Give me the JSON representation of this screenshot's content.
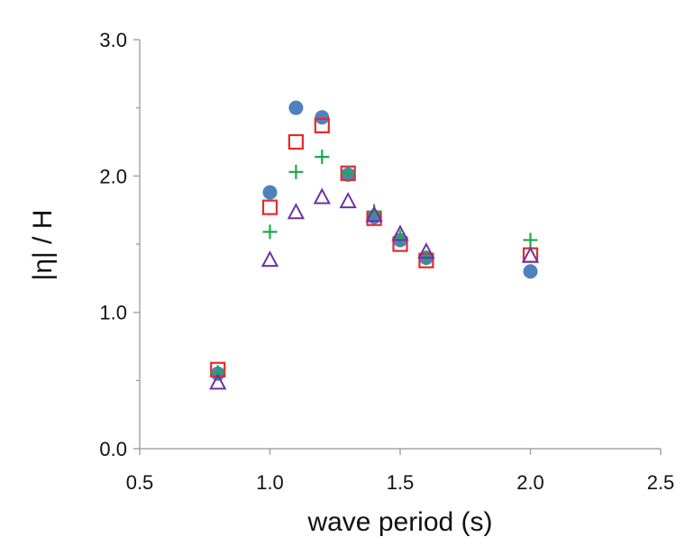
{
  "chart_data": {
    "type": "scatter",
    "title": "",
    "xlabel": "wave period (s)",
    "ylabel": "|η| / H",
    "xlim": [
      0.5,
      2.5
    ],
    "ylim": [
      0.0,
      3.0
    ],
    "xticks": [
      "0.5",
      "1.0",
      "1.5",
      "2.0",
      "2.5"
    ],
    "yticks": [
      "0.0",
      "1.0",
      "2.0",
      "3.0"
    ],
    "grid": false,
    "legend": "none",
    "series": [
      {
        "marker": "circle",
        "color": "#4f81bd",
        "x": [
          0.8,
          1.0,
          1.1,
          1.2,
          1.3,
          1.4,
          1.5,
          1.6,
          2.0
        ],
        "y": [
          0.55,
          1.88,
          2.5,
          2.43,
          2.01,
          1.7,
          1.53,
          1.4,
          1.3
        ]
      },
      {
        "marker": "square",
        "color": "#e32b2b",
        "x": [
          0.8,
          1.0,
          1.1,
          1.2,
          1.3,
          1.4,
          1.5,
          1.6,
          2.0
        ],
        "y": [
          0.58,
          1.77,
          2.25,
          2.37,
          2.02,
          1.69,
          1.5,
          1.38,
          1.42
        ]
      },
      {
        "marker": "plus",
        "color": "#1aaa48",
        "x": [
          0.8,
          1.0,
          1.1,
          1.2,
          1.3,
          1.4,
          1.5,
          1.6,
          2.0
        ],
        "y": [
          0.56,
          1.59,
          2.03,
          2.14,
          2.02,
          1.74,
          1.55,
          1.4,
          1.53
        ]
      },
      {
        "marker": "triangle",
        "color": "#7030a0",
        "x": [
          0.8,
          1.0,
          1.1,
          1.2,
          1.3,
          1.4,
          1.5,
          1.6,
          2.0
        ],
        "y": [
          0.48,
          1.38,
          1.73,
          1.84,
          1.81,
          1.71,
          1.57,
          1.44,
          1.41
        ]
      }
    ]
  }
}
